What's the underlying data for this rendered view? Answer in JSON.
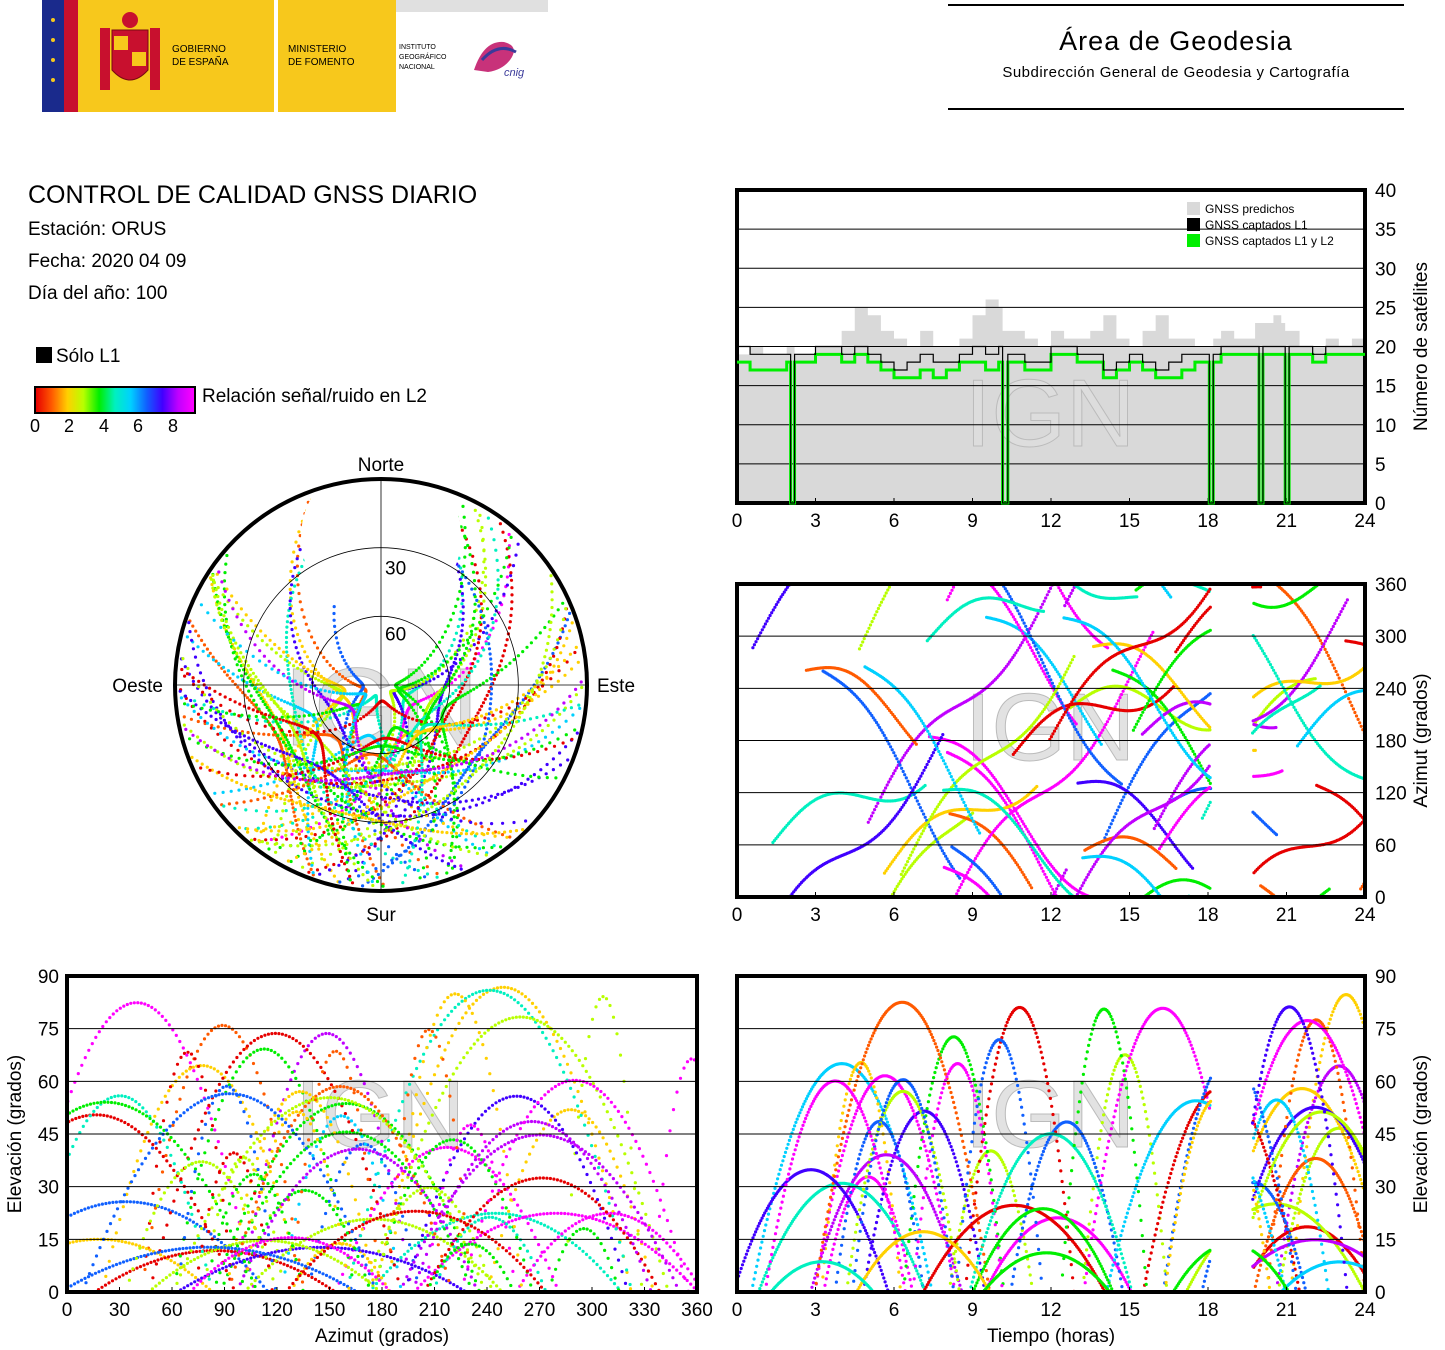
{
  "header": {
    "org_gobierno": "GOBIERNO DE ESPAÑA",
    "org_gobierno_l1": "GOBIERNO",
    "org_gobierno_l2": "DE ESPAÑA",
    "org_ministerio_l1": "MINISTERIO",
    "org_ministerio_l2": "DE FOMENTO",
    "org_ign_l1": "INSTITUTO",
    "org_ign_l2": "GEOGRÁFICO",
    "org_ign_l3": "NACIONAL",
    "org_cnig": "cnig",
    "area_title": "Área de Geodesia",
    "area_subtitle": "Subdirección General de Geodesia y Cartografía"
  },
  "report": {
    "title": "CONTROL DE CALIDAD GNSS DIARIO",
    "station": "Estación: ORUS",
    "date": "Fecha: 2020 04 09",
    "doy": "Día del año: 100"
  },
  "legend": {
    "only_l1": "Sólo L1",
    "snr_label": "Relación señal/ruido en L2",
    "snr_ticks": [
      "0",
      "2",
      "4",
      "6",
      "8"
    ]
  },
  "watermark": "IGN",
  "colors": {
    "predicted": "#d9d9d9",
    "l1": "#000000",
    "l1l2": "#00ee00",
    "snr_scale": [
      "#e60000",
      "#ff5a00",
      "#ffd000",
      "#b8ff00",
      "#00ee00",
      "#00f0c0",
      "#00d0ff",
      "#1060ff",
      "#4000ff",
      "#c000ff",
      "#ff00ff"
    ]
  },
  "chart_data": [
    {
      "type": "area",
      "id": "satellite-count",
      "legend": [
        "GNSS predichos",
        "GNSS captados L1",
        "GNSS captados L1 y L2"
      ],
      "legend_position": "top-right",
      "ylabel": "Número de satélites",
      "xlim": [
        0,
        24
      ],
      "ylim": [
        0,
        40
      ],
      "xticks": [
        "0",
        "3",
        "6",
        "9",
        "12",
        "15",
        "18",
        "21",
        "24"
      ],
      "yticks": [
        "0",
        "5",
        "10",
        "15",
        "20",
        "25",
        "30",
        "35",
        "40"
      ],
      "grid": true,
      "x": [
        0,
        0.5,
        1,
        1.5,
        1.9,
        2.05,
        2.2,
        2.5,
        3,
        3.5,
        4,
        4.5,
        5,
        5.5,
        6,
        6.5,
        7,
        7.5,
        8,
        8.5,
        9,
        9.5,
        10,
        10.15,
        10.35,
        10.5,
        11,
        11.5,
        12,
        12.5,
        13,
        13.5,
        14,
        14.5,
        15,
        15.5,
        16,
        16.5,
        17,
        17.5,
        17.9,
        18.05,
        18.2,
        18.5,
        19,
        19.5,
        19.8,
        19.95,
        20.1,
        20.5,
        20.8,
        20.95,
        21.1,
        21.5,
        22,
        22.5,
        23,
        23.5,
        24
      ],
      "predicted": [
        19,
        20,
        19,
        19,
        20,
        20,
        19,
        19,
        20,
        20,
        22,
        25,
        24,
        22,
        21,
        20,
        22,
        20,
        20,
        21,
        24,
        26,
        25,
        22,
        22,
        22,
        21,
        20,
        22,
        21,
        21,
        22,
        24,
        21,
        20,
        22,
        24,
        21,
        21,
        20,
        20,
        20,
        21,
        22,
        21,
        21,
        23,
        23,
        23,
        24,
        23,
        22,
        22,
        20,
        20,
        21,
        20,
        21,
        20
      ],
      "l1": [
        20,
        19,
        19,
        19,
        19,
        0,
        19,
        19,
        20,
        20,
        19,
        20,
        19,
        18,
        17,
        18,
        19,
        18,
        18,
        19,
        20,
        19,
        20,
        0,
        19,
        19,
        18,
        18,
        20,
        20,
        19,
        19,
        17,
        18,
        19,
        18,
        17,
        18,
        19,
        19,
        19,
        0,
        19,
        20,
        20,
        20,
        20,
        0,
        20,
        20,
        20,
        0,
        20,
        20,
        19,
        20,
        20,
        20,
        20
      ],
      "l1l2": [
        18,
        17,
        17,
        17,
        18,
        0,
        18,
        18,
        19,
        19,
        18,
        19,
        18,
        17,
        16,
        16,
        17,
        16,
        17,
        18,
        18,
        17,
        18,
        0,
        18,
        18,
        17,
        17,
        19,
        19,
        18,
        18,
        16,
        17,
        18,
        17,
        16,
        16,
        17,
        18,
        18,
        0,
        18,
        19,
        19,
        19,
        19,
        0,
        19,
        19,
        19,
        0,
        19,
        19,
        18,
        19,
        19,
        19,
        19
      ]
    },
    {
      "type": "scatter",
      "id": "azimuth-time",
      "ylabel": "Azimut (grados)",
      "xlim": [
        0,
        24
      ],
      "ylim": [
        0,
        360
      ],
      "xticks": [
        "0",
        "3",
        "6",
        "9",
        "12",
        "15",
        "18",
        "21",
        "24"
      ],
      "yticks": [
        "0",
        "60",
        "120",
        "180",
        "240",
        "300",
        "360"
      ],
      "grid": true,
      "data_gaps_hours": [
        [
          18.1,
          19.7
        ]
      ]
    },
    {
      "type": "scatter",
      "id": "elevation-azimuth",
      "xlabel": "Azimut (grados)",
      "ylabel": "Elevación (grados)",
      "xlim": [
        0,
        360
      ],
      "ylim": [
        0,
        90
      ],
      "xticks": [
        "0",
        "30",
        "60",
        "90",
        "120",
        "150",
        "180",
        "210",
        "240",
        "270",
        "300",
        "330",
        "360"
      ],
      "yticks": [
        "0",
        "15",
        "30",
        "45",
        "60",
        "75",
        "90"
      ],
      "grid": true
    },
    {
      "type": "scatter",
      "id": "elevation-time",
      "xlabel": "Tiempo (horas)",
      "ylabel": "Elevación (grados)",
      "xlim": [
        0,
        24
      ],
      "ylim": [
        0,
        90
      ],
      "xticks": [
        "0",
        "3",
        "6",
        "9",
        "12",
        "15",
        "18",
        "21",
        "24"
      ],
      "yticks": [
        "0",
        "15",
        "30",
        "45",
        "60",
        "75",
        "90"
      ],
      "grid": true,
      "data_gaps_hours": [
        [
          18.1,
          19.7
        ]
      ]
    },
    {
      "type": "scatter",
      "id": "skyplot",
      "directions": {
        "north": "Norte",
        "south": "Sur",
        "east": "Este",
        "west": "Oeste"
      },
      "elevation_rings": [
        "30",
        "60"
      ],
      "grid": true
    }
  ]
}
